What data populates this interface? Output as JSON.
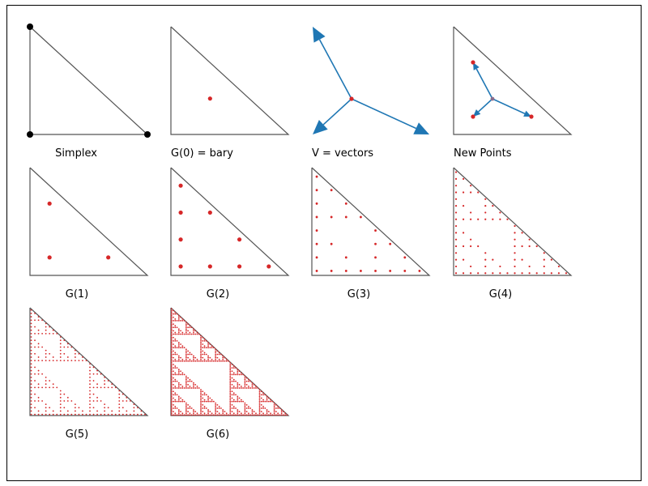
{
  "figure": {
    "colors": {
      "edge": "#555555",
      "point": "#d62728",
      "vertex": "#000000",
      "arrow": "#1f77b4",
      "center": "#d62728"
    },
    "panels": [
      {
        "label": "Simplex",
        "kind": "simplex"
      },
      {
        "label": "G(0) = bary",
        "kind": "points",
        "level": 0
      },
      {
        "label": "V = vectors",
        "kind": "vectors"
      },
      {
        "label": "New Points",
        "kind": "newpoints"
      },
      {
        "label": "G(1)",
        "kind": "points",
        "level": 1
      },
      {
        "label": "G(2)",
        "kind": "points",
        "level": 2
      },
      {
        "label": "G(3)",
        "kind": "points",
        "level": 3
      },
      {
        "label": "G(4)",
        "kind": "points",
        "level": 4
      },
      {
        "label": "G(5)",
        "kind": "points",
        "level": 5
      },
      {
        "label": "G(6)",
        "kind": "points",
        "level": 6
      }
    ]
  }
}
